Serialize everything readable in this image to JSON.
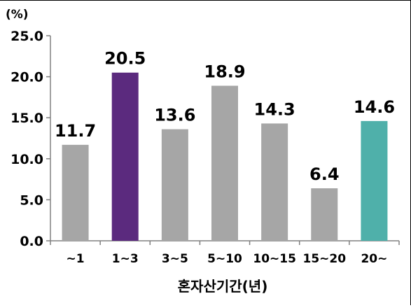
{
  "chart_data": {
    "type": "bar",
    "unit_label": "(%)",
    "xlabel": "혼자산기간(년)",
    "ylabel": "",
    "title": "",
    "ylim": [
      0,
      25
    ],
    "yticks": [
      "0.0",
      "5.0",
      "10.0",
      "15.0",
      "20.0",
      "25.0"
    ],
    "grid": false,
    "categories": [
      "~1",
      "1~3",
      "3~5",
      "5~10",
      "10~15",
      "15~20",
      "20~"
    ],
    "values": [
      11.7,
      20.5,
      13.6,
      18.9,
      14.3,
      6.4,
      14.6
    ],
    "value_labels": [
      "11.7",
      "20.5",
      "13.6",
      "18.9",
      "14.3",
      "6.4",
      "14.6"
    ],
    "colors": [
      "#a6a6a6",
      "#5b2a7e",
      "#a6a6a6",
      "#a6a6a6",
      "#a6a6a6",
      "#a6a6a6",
      "#4fb0aa"
    ]
  }
}
